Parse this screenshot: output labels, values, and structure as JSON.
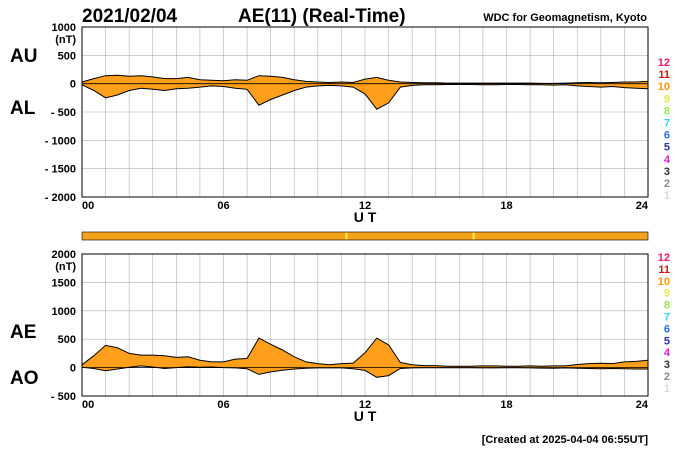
{
  "header": {
    "date": "2021/02/04",
    "title": "AE(11) (Real-Time)",
    "source": "WDC for Geomagnetism, Kyoto"
  },
  "footer": {
    "created": "[Created at 2025-04-04 06:55UT]"
  },
  "colors": {
    "fill": "#ff9f1c",
    "trace": "#000000",
    "grid": "#b0b0b0",
    "status_bar": "#f4a11b",
    "status_mark": "#f3e23a"
  },
  "level_legend": [
    {
      "label": "12",
      "color": "#e8176b"
    },
    {
      "label": "11",
      "color": "#e0120f"
    },
    {
      "label": "10",
      "color": "#ff9900"
    },
    {
      "label": "9",
      "color": "#e6e64c"
    },
    {
      "label": "8",
      "color": "#99e64c"
    },
    {
      "label": "7",
      "color": "#33d6e6"
    },
    {
      "label": "6",
      "color": "#1f6fe6"
    },
    {
      "label": "5",
      "color": "#2d2db3"
    },
    {
      "label": "4",
      "color": "#cc29cc"
    },
    {
      "label": "3",
      "color": "#333333"
    },
    {
      "label": "2",
      "color": "#8c8c8c"
    },
    {
      "label": "1",
      "color": "#d9d9d9"
    }
  ],
  "status_bar": {
    "marks_ut": [
      11.2,
      16.6
    ]
  },
  "chart_data": [
    {
      "type": "area",
      "name": "AU/AL",
      "upper_label": "AU",
      "lower_label": "AL",
      "ylabel": "(nT)",
      "xlabel": "U T",
      "xlim": [
        0,
        24
      ],
      "ylim": [
        -2000,
        1000
      ],
      "x_ticks": [
        "00",
        "06",
        "12",
        "18",
        "24"
      ],
      "y_ticks": [
        "1000",
        "500",
        "0",
        "- 500",
        "- 1000",
        "- 1500",
        "- 2000"
      ],
      "grid": true,
      "x": [
        0,
        0.5,
        1,
        1.5,
        2,
        2.5,
        3,
        3.5,
        4,
        4.5,
        5,
        5.5,
        6,
        6.5,
        7,
        7.5,
        8,
        8.5,
        9,
        9.5,
        10,
        10.5,
        11,
        11.5,
        12,
        12.5,
        13,
        13.5,
        14,
        14.5,
        15,
        15.5,
        16,
        16.5,
        17,
        17.5,
        18,
        18.5,
        19,
        19.5,
        20,
        20.5,
        21,
        21.5,
        22,
        22.5,
        23,
        23.5,
        24
      ],
      "series": [
        {
          "name": "AU",
          "values": [
            30,
            90,
            140,
            150,
            130,
            140,
            120,
            90,
            90,
            110,
            70,
            60,
            50,
            70,
            60,
            140,
            130,
            110,
            70,
            40,
            30,
            20,
            30,
            20,
            80,
            110,
            60,
            30,
            20,
            15,
            15,
            10,
            10,
            10,
            10,
            10,
            10,
            10,
            10,
            5,
            5,
            10,
            15,
            20,
            15,
            20,
            30,
            30,
            40
          ]
        },
        {
          "name": "AL",
          "values": [
            -20,
            -120,
            -250,
            -200,
            -120,
            -80,
            -100,
            -120,
            -90,
            -80,
            -60,
            -40,
            -50,
            -80,
            -100,
            -380,
            -280,
            -200,
            -120,
            -60,
            -40,
            -30,
            -40,
            -60,
            -180,
            -450,
            -340,
            -60,
            -30,
            -20,
            -20,
            -15,
            -15,
            -15,
            -20,
            -20,
            -15,
            -15,
            -20,
            -20,
            -25,
            -20,
            -40,
            -50,
            -60,
            -50,
            -70,
            -80,
            -90
          ]
        }
      ]
    },
    {
      "type": "area",
      "name": "AE/AO",
      "upper_label": "AE",
      "lower_label": "AO",
      "ylabel": "(nT)",
      "xlabel": "U T",
      "xlim": [
        0,
        24
      ],
      "ylim": [
        -500,
        2000
      ],
      "x_ticks": [
        "00",
        "06",
        "12",
        "18",
        "24"
      ],
      "y_ticks": [
        "2000",
        "1500",
        "1000",
        "500",
        "0",
        "- 500"
      ],
      "grid": true,
      "x": [
        0,
        0.5,
        1,
        1.5,
        2,
        2.5,
        3,
        3.5,
        4,
        4.5,
        5,
        5.5,
        6,
        6.5,
        7,
        7.5,
        8,
        8.5,
        9,
        9.5,
        10,
        10.5,
        11,
        11.5,
        12,
        12.5,
        13,
        13.5,
        14,
        14.5,
        15,
        15.5,
        16,
        16.5,
        17,
        17.5,
        18,
        18.5,
        19,
        19.5,
        20,
        20.5,
        21,
        21.5,
        22,
        22.5,
        23,
        23.5,
        24
      ],
      "series": [
        {
          "name": "AE",
          "values": [
            50,
            210,
            390,
            350,
            250,
            220,
            220,
            210,
            180,
            190,
            130,
            100,
            100,
            150,
            160,
            520,
            410,
            310,
            190,
            100,
            70,
            50,
            70,
            80,
            260,
            520,
            400,
            90,
            50,
            35,
            35,
            25,
            25,
            25,
            30,
            30,
            25,
            25,
            30,
            25,
            30,
            30,
            55,
            70,
            75,
            70,
            100,
            110,
            130
          ]
        },
        {
          "name": "AO",
          "values": [
            5,
            -15,
            -55,
            -25,
            5,
            30,
            10,
            -15,
            0,
            15,
            5,
            10,
            0,
            -5,
            -20,
            -120,
            -75,
            -45,
            -25,
            -10,
            -5,
            -5,
            -5,
            -20,
            -50,
            -170,
            -140,
            -15,
            -5,
            -3,
            -3,
            -3,
            -3,
            -3,
            -5,
            -5,
            -3,
            -3,
            -5,
            -8,
            -10,
            -5,
            -12,
            -15,
            -22,
            -15,
            -20,
            -25,
            -25
          ]
        }
      ]
    }
  ]
}
